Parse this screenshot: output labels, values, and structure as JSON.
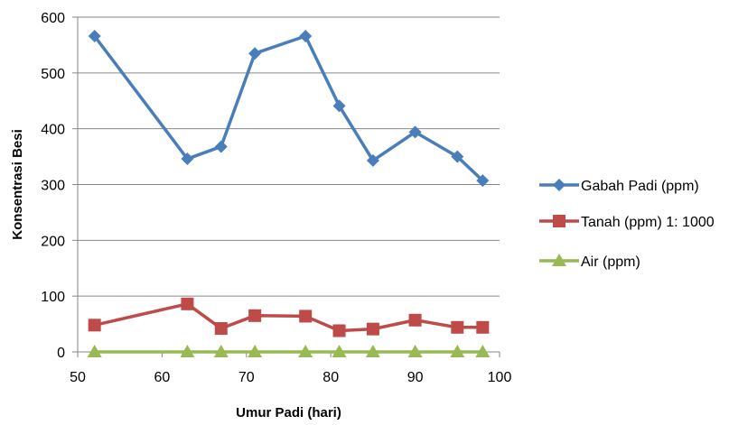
{
  "chart_data": {
    "type": "line",
    "title": "",
    "xlabel": "Umur Padi (hari)",
    "ylabel": "Konsentrasi Besi",
    "xlim": [
      50,
      100
    ],
    "ylim": [
      0,
      600
    ],
    "x_ticks": [
      "50",
      "60",
      "70",
      "80",
      "90",
      "100"
    ],
    "y_ticks": [
      "0",
      "100",
      "200",
      "300",
      "400",
      "500",
      "600"
    ],
    "grid": "horizontal",
    "legend_position": "right",
    "x": [
      52,
      63,
      67,
      71,
      77,
      81,
      85,
      90,
      95,
      98
    ],
    "series": [
      {
        "name": "Gabah Padi (ppm)",
        "color": "#4a7ebb",
        "marker": "diamond",
        "values": [
          566,
          346,
          368,
          535,
          566,
          441,
          343,
          394,
          350,
          307
        ]
      },
      {
        "name": "Tanah (ppm) 1: 1000",
        "color": "#be4b48",
        "marker": "square",
        "values": [
          48,
          86,
          42,
          65,
          64,
          38,
          41,
          57,
          44,
          44
        ]
      },
      {
        "name": "Air (ppm)",
        "color": "#98b954",
        "marker": "triangle",
        "values": [
          0,
          0,
          0,
          0,
          0,
          0,
          0,
          0,
          0,
          0
        ]
      }
    ]
  }
}
